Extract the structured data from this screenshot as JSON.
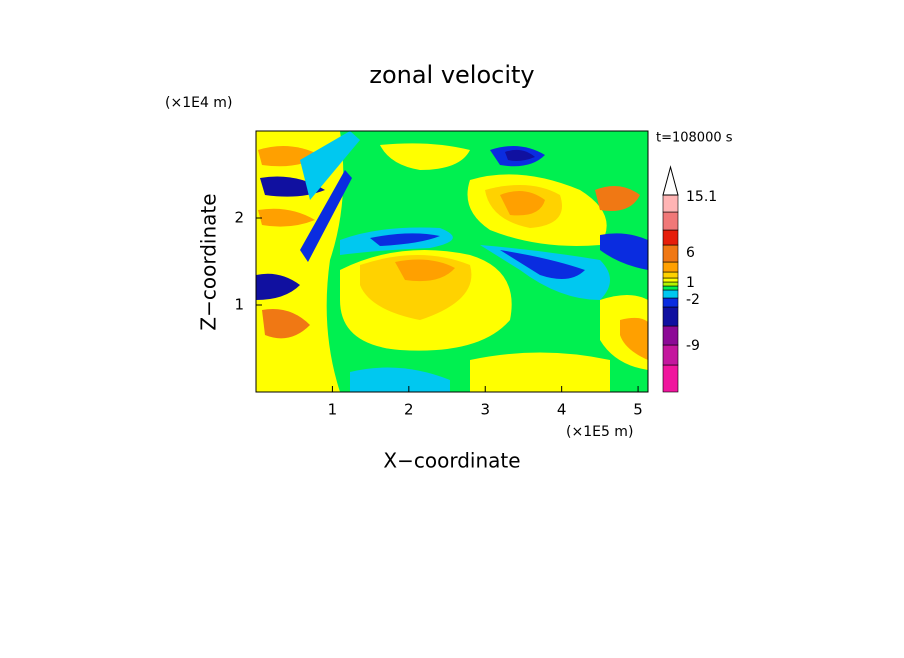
{
  "chart_data": {
    "type": "contour",
    "title": "zonal velocity",
    "x_label": "X−coordinate",
    "y_label": "Z−coordinate",
    "x_unit": "(×1E5 m)",
    "y_unit": "(×1E4 m)",
    "time_label": "t=108000 s",
    "xlim": [
      0,
      5.13
    ],
    "ylim": [
      0,
      3
    ],
    "xticks": [
      1,
      2,
      3,
      4,
      5
    ],
    "yticks": [
      1,
      2
    ],
    "colorbar": {
      "colors": [
        "#f0169e",
        "#c4179e",
        "#8c0a96",
        "#1010a0",
        "#0a2ce0",
        "#00c8f0",
        "#00f050",
        "#b4f500",
        "#ffff00",
        "#ffd200",
        "#ffa000",
        "#f07814",
        "#e61e0a",
        "#f07878",
        "#ffb4b4"
      ],
      "ticks": [
        15.1,
        6,
        1,
        -2,
        -9
      ]
    }
  }
}
